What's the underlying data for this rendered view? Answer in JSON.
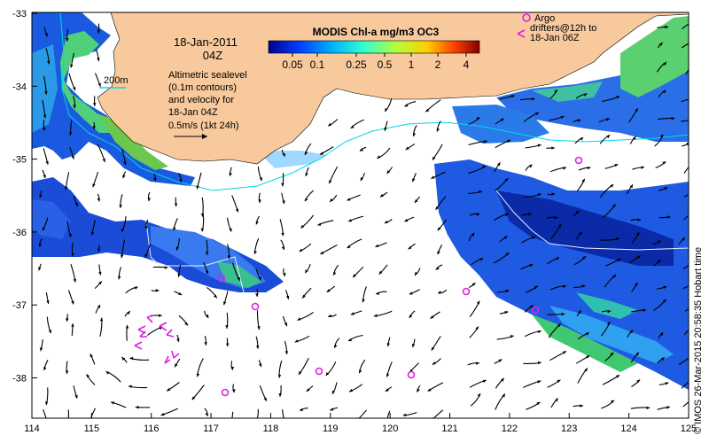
{
  "map": {
    "x_ticks": [
      "114",
      "115",
      "116",
      "117",
      "118",
      "119",
      "120",
      "121",
      "122",
      "123",
      "124",
      "125"
    ],
    "y_ticks": [
      "-33",
      "-34",
      "-35",
      "-36",
      "-37",
      "-38"
    ],
    "date_line1": "18-Jan-2011",
    "date_line2": "04Z",
    "colorbar_title": "MODIS Chl-a mg/m3 OC3",
    "colorbar_labels": [
      "0.05",
      "0.1",
      "0.25",
      "0.5",
      "1",
      "2",
      "4"
    ],
    "isobath_label": "200m",
    "altimetry_note": [
      "Altimetric sealevel",
      "(0.1m contours)",
      "and velocity for",
      "18-Jan 04Z"
    ],
    "velocity_scale_label": "0.5m/s (1kt 24h)",
    "argo_legend": [
      "Argo",
      "drifters@12h to",
      "18-Jan 06Z"
    ],
    "credit": "© IMOS 26-Mar-2015 20:58:35 Hobart time",
    "colors": {
      "land": "#f8c99c",
      "isobath": "#00d8e8",
      "argo": "#e020e0",
      "frame": "#000000"
    }
  }
}
